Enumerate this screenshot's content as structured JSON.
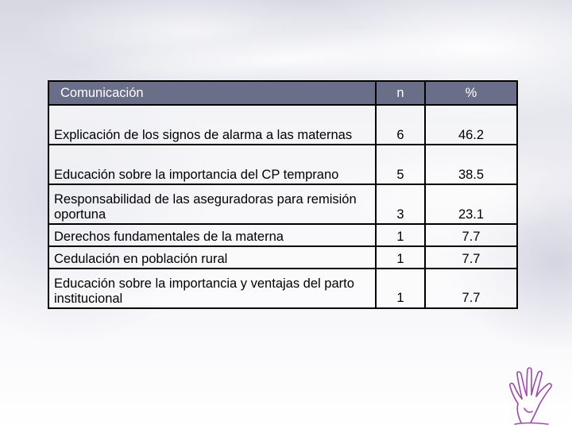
{
  "table": {
    "headers": {
      "label": "Comunicación",
      "n": "n",
      "percent": "%"
    },
    "rows": [
      {
        "label": "Explicación de los signos de alarma a las maternas",
        "n": "6",
        "percent": "46.2"
      },
      {
        "label": "Educación sobre la importancia del CP temprano",
        "n": "5",
        "percent": "38.5"
      },
      {
        "label": "Responsabilidad de las aseguradoras para remisión oportuna",
        "n": "3",
        "percent": "23.1"
      },
      {
        "label": "Derechos fundamentales de la materna",
        "n": "1",
        "percent": "7.7"
      },
      {
        "label": "Cedulación en población rural",
        "n": "1",
        "percent": "7.7"
      },
      {
        "label": "Educación sobre la importancia y ventajas del parto institucional",
        "n": "1",
        "percent": "7.7"
      }
    ]
  },
  "colors": {
    "header_background": "#6b6e88",
    "header_text": "#ffffff",
    "logo_stroke": "#9b4aa6"
  },
  "logo": {
    "icon": "hand-icon"
  }
}
